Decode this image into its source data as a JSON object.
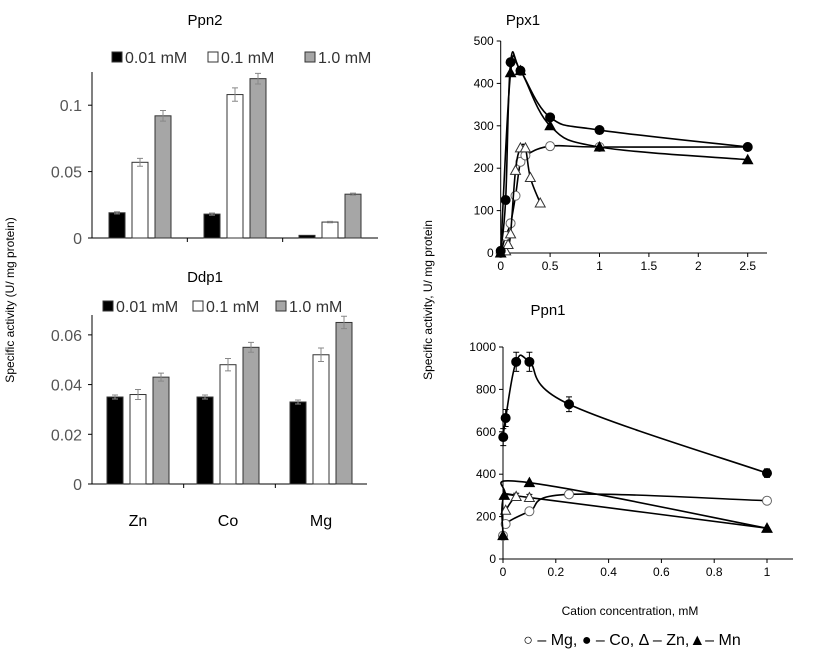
{
  "shared": {
    "left_ylabel": "Specific activity (U/ mg protein)",
    "right_ylabel": "Specific activity, U/ mg protein",
    "right_xlabel": "Cation concentration, mM",
    "right_legend": "○ – Mg, ● – Co, Δ – Zn,▲– Mn"
  },
  "chart_data": [
    {
      "type": "bar",
      "title": "Ppn2",
      "categories": [
        "Zn",
        "Co",
        "Mg"
      ],
      "ylim": [
        0,
        0.125
      ],
      "yticks": [
        "0",
        "0.05",
        "0.1"
      ],
      "ytick_values": [
        0,
        0.05,
        0.1
      ],
      "legend": "top",
      "series": [
        {
          "name": "0.01 mM",
          "color": "#000000",
          "values": [
            0.019,
            0.018,
            0.002
          ],
          "errors": [
            0.0008,
            0.0008,
            0.0003
          ]
        },
        {
          "name": "0.1 mM",
          "color": "#ffffff",
          "values": [
            0.057,
            0.108,
            0.012
          ],
          "errors": [
            0.003,
            0.005,
            0.0005
          ]
        },
        {
          "name": "1.0 mM",
          "color": "#a6a6a6",
          "values": [
            0.092,
            0.12,
            0.033
          ],
          "errors": [
            0.004,
            0.004,
            0.0008
          ]
        }
      ]
    },
    {
      "type": "bar",
      "title": "Ddp1",
      "categories": [
        "Zn",
        "Co",
        "Mg"
      ],
      "ylim": [
        0,
        0.068
      ],
      "yticks": [
        "0",
        "0.02",
        "0.04",
        "0.06"
      ],
      "ytick_values": [
        0,
        0.02,
        0.04,
        0.06
      ],
      "legend": "top",
      "series": [
        {
          "name": "0.01 mM",
          "color": "#000000",
          "values": [
            0.035,
            0.035,
            0.033
          ],
          "errors": [
            0.0008,
            0.0008,
            0.0008
          ]
        },
        {
          "name": "0.1 mM",
          "color": "#ffffff",
          "values": [
            0.036,
            0.048,
            0.052
          ],
          "errors": [
            0.002,
            0.0025,
            0.0027
          ]
        },
        {
          "name": "1.0 mM",
          "color": "#a6a6a6",
          "values": [
            0.043,
            0.055,
            0.065
          ],
          "errors": [
            0.0016,
            0.002,
            0.0025
          ]
        }
      ]
    },
    {
      "type": "line",
      "title": "Ppx1",
      "xlim": [
        0,
        2.7
      ],
      "ylim": [
        0,
        500
      ],
      "xticks": [
        "0",
        "0.5",
        "1",
        "1.5",
        "2",
        "2.5"
      ],
      "xtick_values": [
        0,
        0.5,
        1,
        1.5,
        2,
        2.5
      ],
      "yticks": [
        "0",
        "100",
        "200",
        "300",
        "400",
        "500"
      ],
      "ytick_values": [
        0,
        100,
        200,
        300,
        400,
        500
      ],
      "series": [
        {
          "name": "Mg",
          "marker": "open-circle",
          "x": [
            0,
            0.05,
            0.1,
            0.15,
            0.2,
            0.25,
            0.5,
            1,
            2.5
          ],
          "y": [
            0,
            40,
            70,
            135,
            215,
            230,
            252,
            250,
            250
          ]
        },
        {
          "name": "Zn",
          "marker": "open-triangle",
          "x": [
            0,
            0.05,
            0.075,
            0.1,
            0.15,
            0.2,
            0.25,
            0.3,
            0.4
          ],
          "y": [
            0,
            5,
            20,
            45,
            195,
            248,
            248,
            178,
            118
          ]
        },
        {
          "name": "Mn",
          "marker": "filled-triangle",
          "x": [
            0,
            0.1,
            0.2,
            0.5,
            1,
            2.5
          ],
          "y": [
            0,
            425,
            430,
            300,
            250,
            220
          ]
        },
        {
          "name": "Co",
          "marker": "filled-circle",
          "x": [
            0,
            0.05,
            0.1,
            0.2,
            0.5,
            1,
            2.5
          ],
          "y": [
            5,
            125,
            450,
            430,
            320,
            290,
            250
          ]
        }
      ]
    },
    {
      "type": "line",
      "title": "Ppn1",
      "xlim": [
        0,
        1.1
      ],
      "ylim": [
        0,
        1000
      ],
      "xticks": [
        "0",
        "0.2",
        "0.4",
        "0.6",
        "0.8",
        "1"
      ],
      "xtick_values": [
        0,
        0.2,
        0.4,
        0.6,
        0.8,
        1
      ],
      "yticks": [
        "0",
        "200",
        "400",
        "600",
        "800",
        "1000"
      ],
      "ytick_values": [
        0,
        200,
        400,
        600,
        800,
        1000
      ],
      "series": [
        {
          "name": "Mg",
          "marker": "open-circle",
          "x": [
            0,
            0.01,
            0.1,
            0.25,
            1
          ],
          "y": [
            110,
            165,
            225,
            305,
            275
          ],
          "errors": [
            0,
            0,
            0,
            0,
            0
          ]
        },
        {
          "name": "Zn",
          "marker": "open-triangle",
          "x": [
            0.01,
            0.05,
            0.1,
            1
          ],
          "y": [
            230,
            295,
            290,
            145
          ],
          "errors": [
            0,
            15,
            15,
            0
          ]
        },
        {
          "name": "Mn",
          "marker": "filled-triangle",
          "x": [
            0,
            0.005,
            0.1,
            1
          ],
          "y": [
            110,
            300,
            360,
            145
          ],
          "errors": [
            0,
            0,
            0,
            0
          ]
        },
        {
          "name": "Co",
          "marker": "filled-circle",
          "x": [
            0.001,
            0.01,
            0.05,
            0.1,
            0.25,
            1
          ],
          "y": [
            575,
            665,
            930,
            930,
            730,
            405
          ],
          "errors": [
            40,
            40,
            45,
            45,
            35,
            20
          ]
        }
      ]
    }
  ]
}
